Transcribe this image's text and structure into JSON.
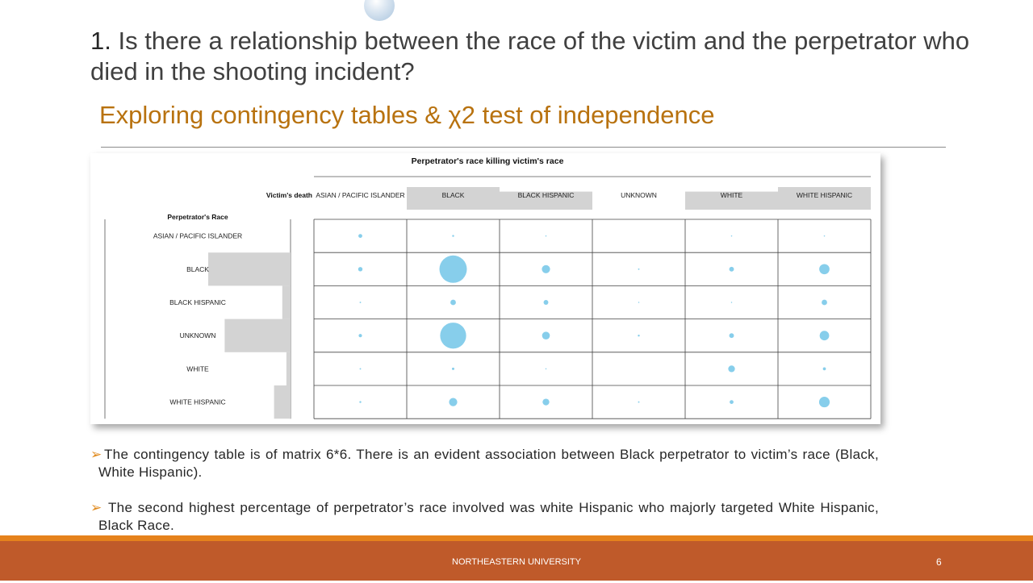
{
  "slide": {
    "title_number": "1.",
    "title_text": " Is there a relationship between the race of the victim and the perpetrator who died in the shooting incident?",
    "subtitle": "Exploring  contingency tables & χ2 test of independence",
    "bullets": [
      "The contingency table is of matrix 6*6. There is an evident association between Black perpetrator to victim’s race (Black, White Hispanic).",
      " The second highest percentage of perpetrator’s race involved was white Hispanic who majorly targeted White Hispanic, Black Race."
    ],
    "bullet_marker": "➢",
    "footer": "NORTHEASTERN UNIVERSITY",
    "page_number": "6"
  },
  "colors": {
    "title": "#404040",
    "subtitle": "#b8720f",
    "bullet_marker": "#e08a1e",
    "footer_band": "#bf5a2a",
    "footer_line": "#e5821c",
    "bubble": "#87ceeb",
    "bar": "#d3d3d3"
  },
  "chart_data": {
    "type": "balloon-plot",
    "title": "Perpetrator's race killing victim's race",
    "column_header_label": "Victim's death",
    "row_header_label": "Perpetrator's Race",
    "columns": [
      "ASIAN / PACIFIC ISLANDER",
      "BLACK",
      "BLACK HISPANIC",
      "UNKNOWN",
      "WHITE",
      "WHITE HISPANIC"
    ],
    "rows": [
      "ASIAN / PACIFIC ISLANDER",
      "BLACK",
      "BLACK HISPANIC",
      "UNKNOWN",
      "WHITE",
      "WHITE HISPANIC"
    ],
    "values": [
      [
        2,
        0.5,
        0.2,
        0,
        0.2,
        0.2
      ],
      [
        2.5,
        100,
        9,
        0.3,
        3,
        14
      ],
      [
        0.3,
        4,
        3,
        0.2,
        0.2,
        4
      ],
      [
        1.5,
        90,
        8,
        0.5,
        3,
        12
      ],
      [
        0.3,
        0.8,
        0.2,
        0,
        6,
        1.2
      ],
      [
        0.5,
        9,
        6,
        0.3,
        2,
        15
      ]
    ],
    "column_marginal_fraction": [
      0,
      1,
      0.8,
      0,
      0.8,
      1
    ],
    "row_marginal_fraction": [
      0,
      1,
      0.1,
      0.8,
      0.05,
      0.2
    ]
  }
}
